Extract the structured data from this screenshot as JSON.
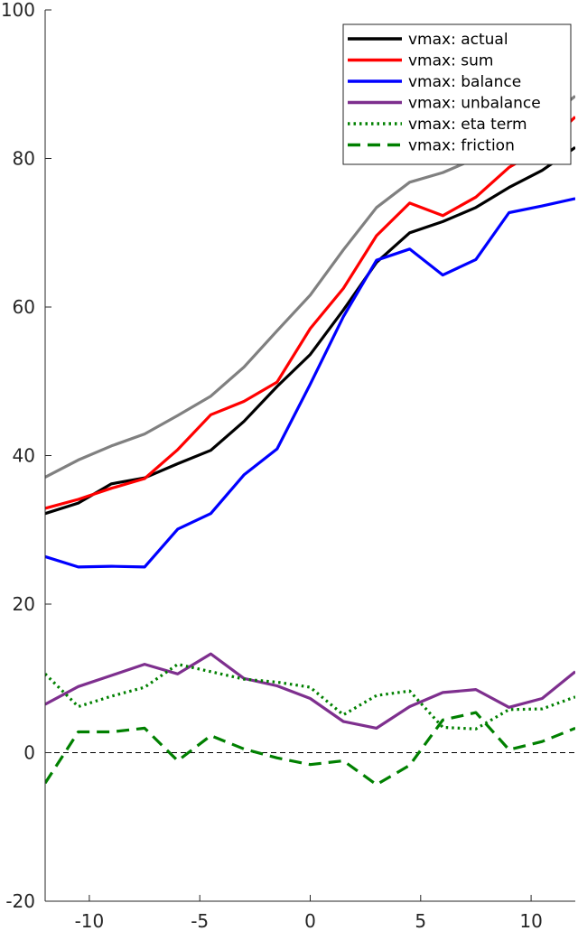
{
  "chart_data": {
    "type": "line",
    "title": "",
    "xlabel": "",
    "ylabel": "",
    "xlim": [
      -12,
      12
    ],
    "ylim": [
      -20,
      100
    ],
    "xticks": [
      -10,
      -5,
      0,
      5,
      10
    ],
    "yticks": [
      -20,
      0,
      20,
      40,
      60,
      80,
      100
    ],
    "grid": false,
    "legend_position": "top-right",
    "x": [
      -12,
      -10.5,
      -9,
      -7.5,
      -6,
      -4.5,
      -3,
      -1.5,
      0,
      1.5,
      3,
      4.5,
      6,
      7.5,
      9,
      10.5,
      12
    ],
    "series": [
      {
        "name": "vmax: actual",
        "color": "#000000",
        "style": "solid",
        "values": [
          32.2,
          33.6,
          36.2,
          37.0,
          38.9,
          40.7,
          44.6,
          49.3,
          53.6,
          59.6,
          66.0,
          70.0,
          71.5,
          73.4,
          76.1,
          78.4,
          81.5
        ]
      },
      {
        "name": "vmax: sum",
        "color": "#ff0000",
        "style": "solid",
        "values": [
          32.9,
          34.1,
          35.6,
          36.9,
          40.8,
          45.5,
          47.3,
          49.9,
          57.1,
          62.5,
          69.6,
          74.0,
          72.3,
          74.8,
          78.8,
          81.4,
          85.6
        ]
      },
      {
        "name": "vmax: balance",
        "color": "#0000ff",
        "style": "solid",
        "values": [
          26.4,
          25.0,
          25.1,
          25.0,
          30.1,
          32.2,
          37.4,
          40.9,
          49.6,
          58.7,
          66.3,
          67.8,
          64.3,
          66.4,
          72.7,
          73.6,
          74.6
        ]
      },
      {
        "name": "vmax: unbalance",
        "color": "#7e2f8e",
        "style": "solid",
        "values": [
          6.5,
          8.9,
          10.4,
          11.9,
          10.6,
          13.3,
          10.0,
          9.0,
          7.3,
          4.2,
          3.3,
          6.2,
          8.1,
          8.5,
          6.1,
          7.3,
          10.9
        ]
      },
      {
        "name": "vmax: eta term",
        "color": "#008000",
        "style": "dotted",
        "values": [
          10.6,
          6.2,
          7.6,
          8.8,
          11.9,
          10.9,
          9.9,
          9.5,
          8.8,
          5.1,
          7.7,
          8.3,
          3.4,
          3.2,
          5.8,
          5.9,
          7.5
        ]
      },
      {
        "name": "vmax: friction",
        "color": "#008000",
        "style": "dashed",
        "values": [
          -4.1,
          2.8,
          2.8,
          3.3,
          -1.1,
          2.3,
          0.5,
          -0.7,
          -1.6,
          -1.1,
          -4.3,
          -1.7,
          4.4,
          5.4,
          0.4,
          1.5,
          3.3
        ]
      },
      {
        "color": "#808080",
        "style": "solid",
        "values": [
          37.1,
          39.4,
          41.3,
          42.9,
          45.4,
          48.0,
          51.9,
          56.8,
          61.6,
          67.7,
          73.4,
          76.8,
          78.1,
          80.0,
          82.2,
          84.9,
          88.4
        ]
      }
    ],
    "zero_line": {
      "y": 0,
      "color": "#000000",
      "style": "dashed"
    }
  }
}
